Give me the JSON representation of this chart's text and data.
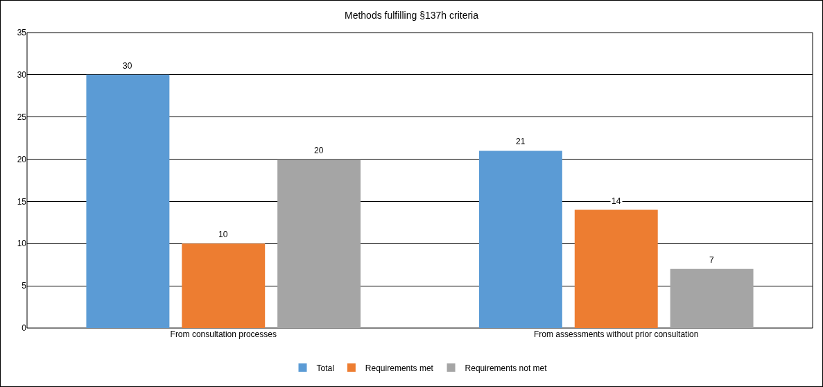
{
  "chart_data": {
    "type": "bar",
    "title": "Methods fulfilling §137h criteria",
    "categories": [
      "From consultation processes",
      "From assessments without prior consultation"
    ],
    "series": [
      {
        "name": "Total",
        "color": "#5b9bd5",
        "values": [
          30,
          21
        ]
      },
      {
        "name": "Requirements met",
        "color": "#ed7d31",
        "values": [
          10,
          14
        ]
      },
      {
        "name": "Requirements not met",
        "color": "#a5a5a5",
        "values": [
          20,
          7
        ]
      }
    ],
    "ylim": [
      0,
      35
    ],
    "yticks": [
      0,
      5,
      10,
      15,
      20,
      25,
      30,
      35
    ],
    "grid": "y",
    "legend": "bottom",
    "data_labels": true
  }
}
